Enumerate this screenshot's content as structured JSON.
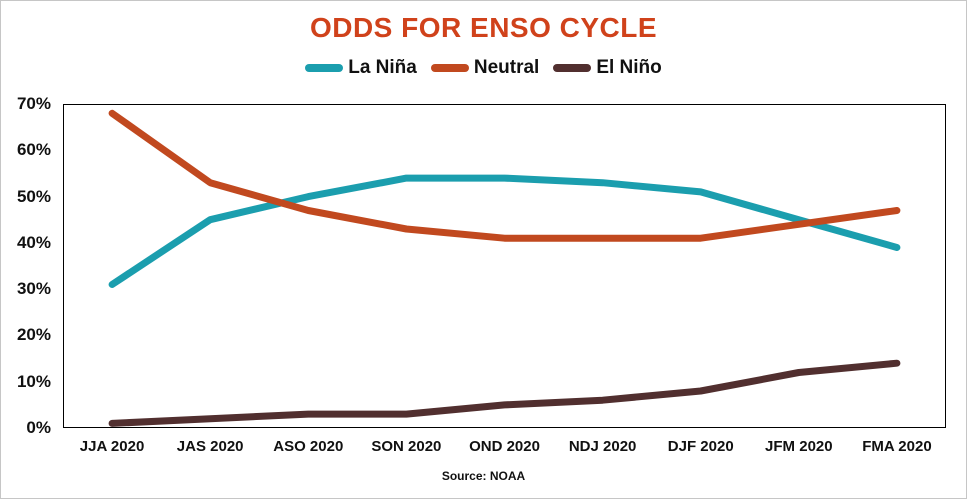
{
  "title": "ODDS FOR ENSO CYCLE",
  "source": "Source: NOAA",
  "colors": {
    "title": "#d0421b",
    "axis_border": "#000000",
    "label_text": "#111111"
  },
  "chart_data": {
    "type": "line",
    "title": "ODDS FOR ENSO CYCLE",
    "categories": [
      "JJA 2020",
      "JAS 2020",
      "ASO 2020",
      "SON 2020",
      "OND 2020",
      "NDJ 2020",
      "DJF 2020",
      "JFM 2020",
      "FMA 2020"
    ],
    "series": [
      {
        "name": "La Niña",
        "color": "#1b9eae",
        "values": [
          31,
          45,
          50,
          54,
          54,
          53,
          51,
          45,
          39
        ]
      },
      {
        "name": "Neutral",
        "color": "#c1491f",
        "values": [
          68,
          53,
          47,
          43,
          41,
          41,
          41,
          44,
          47
        ]
      },
      {
        "name": "El Niño",
        "color": "#512f2f",
        "values": [
          1,
          2,
          3,
          3,
          5,
          6,
          8,
          12,
          14
        ]
      }
    ],
    "xlabel": "",
    "ylabel": "",
    "ylim": [
      0,
      70
    ],
    "ytick_step": 10,
    "ytick_suffix": "%",
    "grid": false,
    "legend_position": "top",
    "annotation": "Source: NOAA"
  }
}
